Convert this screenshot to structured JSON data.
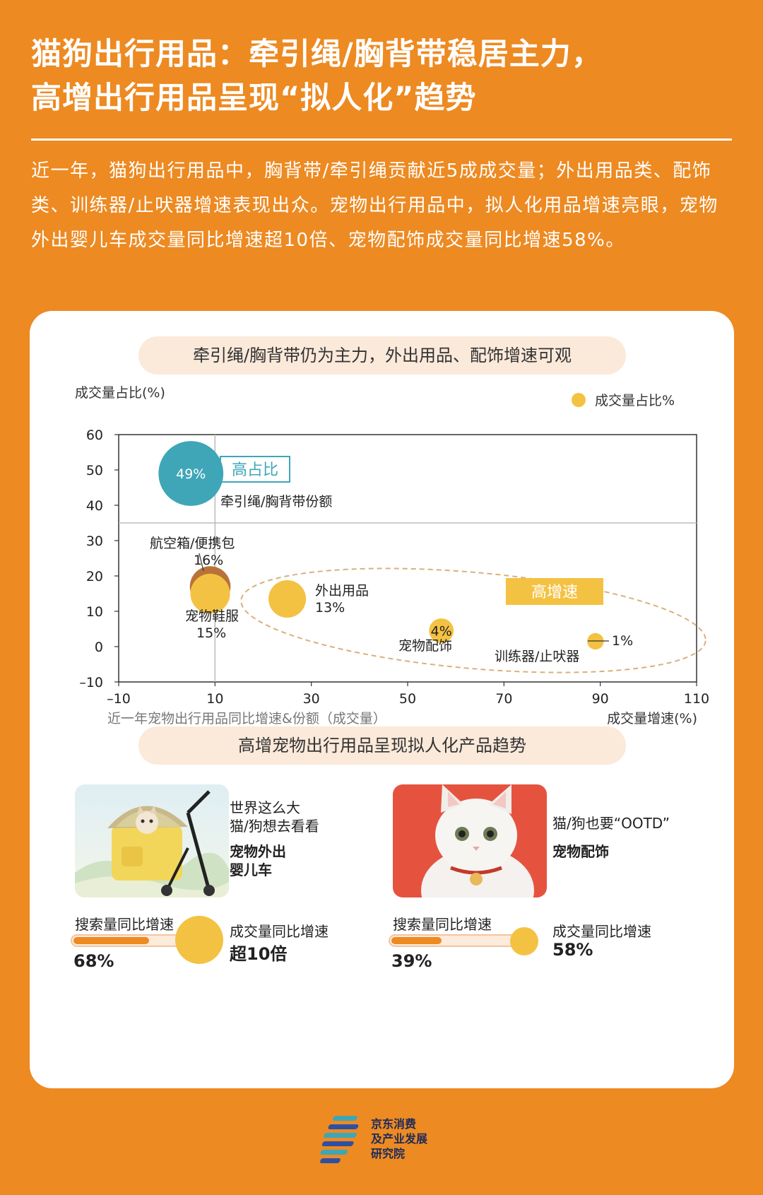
{
  "title_line1": "猫狗出行用品：牵引绳/胸背带稳居主力，",
  "title_line2": "高增出行用品呈现“拟人化”趋势",
  "intro": "近一年，猫狗出行用品中，胸背带/牵引绳贡献近5成成交量；外出用品类、配饰类、训练器/止吠器增速表现出众。宠物出行用品中，拟人化用品增速亮眼，宠物外出婴儿车成交量同比增速超10倍、宠物配饰成交量同比增速58%。",
  "section1_title": "牵引绳/胸背带仍为主力，外出用品、配饰增速可观",
  "section2_title": "高增宠物出行用品呈现拟人化产品趋势",
  "colors": {
    "orange": "#ED8A22",
    "teal": "#3FA6B8",
    "yellow": "#F4C242",
    "brown": "#B8733A"
  },
  "chart_data": {
    "type": "scatter",
    "ylabel": "成交量占比(%)",
    "xlabel": "成交量增速(%)",
    "caption": "近一年宠物出行用品同比增速&份额（成交量）",
    "legend": "成交量占比%",
    "legend_position": "top-right",
    "xlim": [
      -10,
      110
    ],
    "ylim": [
      -10,
      60
    ],
    "x_ticks": [
      "–10",
      "10",
      "30",
      "50",
      "70",
      "90",
      "110"
    ],
    "y_ticks": [
      "60",
      "50",
      "40",
      "30",
      "20",
      "10",
      "0",
      "–10"
    ],
    "quadrant_lines": {
      "x": 10,
      "y": 35
    },
    "points": [
      {
        "name": "牵引绳/胸背带份额",
        "x": 5,
        "y": 49,
        "share": 49,
        "label": "49%",
        "color": "#3FA6B8"
      },
      {
        "name": "航空箱/便携包",
        "x": 9,
        "y": 17,
        "share": 16,
        "label": "16%",
        "color": "#B8733A"
      },
      {
        "name": "宠物鞋服",
        "x": 9,
        "y": 15,
        "share": 15,
        "label": "15%",
        "color": "#F4C242"
      },
      {
        "name": "外出用品",
        "x": 25,
        "y": 13.5,
        "share": 13,
        "label": "13%",
        "color": "#F4C242"
      },
      {
        "name": "宠物配饰",
        "x": 57,
        "y": 4.5,
        "share": 4,
        "label": "4%",
        "color": "#F4C242"
      },
      {
        "name": "训练器/止吠器",
        "x": 89,
        "y": 1.5,
        "share": 1,
        "label": "1%",
        "color": "#F4C242"
      }
    ],
    "annotations": {
      "high_share": "高占比",
      "high_growth": "高增速"
    }
  },
  "products": [
    {
      "tag1": "世界这么大",
      "tag2": "猫/狗想去看看",
      "name1": "宠物外出",
      "name2": "婴儿车",
      "search_label": "搜索量同比增速",
      "search_value": "68%",
      "search_pct": 68,
      "trade_label": "成交量同比增速",
      "trade_value": "超10倍"
    },
    {
      "tag1": "猫/狗也要“OOTD”",
      "name1": "宠物配饰",
      "search_label": "搜索量同比增速",
      "search_value": "39%",
      "search_pct": 39,
      "trade_label": "成交量同比增速",
      "trade_value": "58%"
    }
  ],
  "footer": {
    "line1": "京东消费",
    "line2": "及产业发展",
    "line3": "研究院"
  }
}
